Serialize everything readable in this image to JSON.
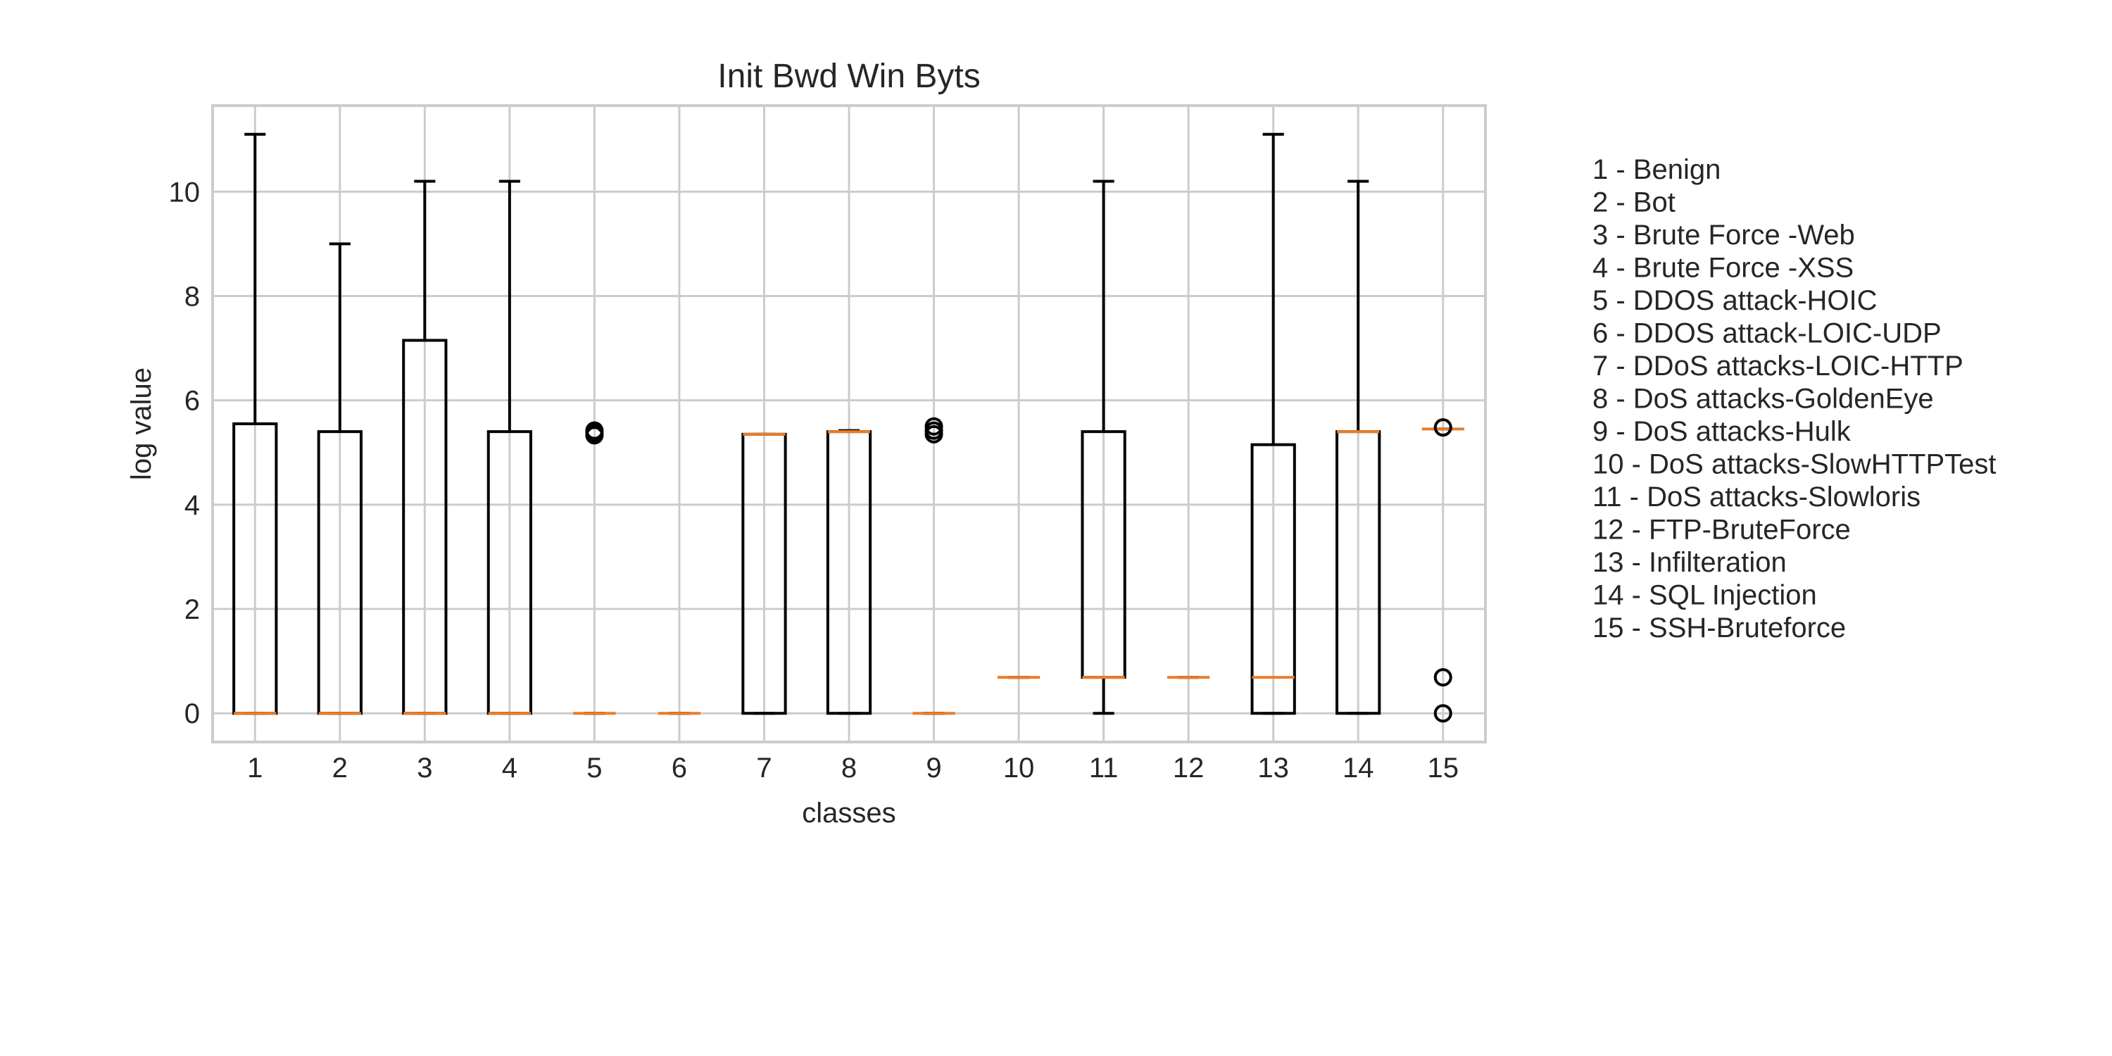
{
  "chart_data": {
    "type": "box",
    "title": "Init Bwd Win Byts",
    "xlabel": "classes",
    "ylabel": "log value",
    "ylim": [
      -0.55,
      11.65
    ],
    "yticks": [
      0,
      2,
      4,
      6,
      8,
      10
    ],
    "grid": true,
    "legend_placement": "right",
    "colors": {
      "box": "#000000",
      "median": "#e87d2a",
      "grid": "#cccccc",
      "frame": "#cccccc"
    },
    "categories": [
      "1",
      "2",
      "3",
      "4",
      "5",
      "6",
      "7",
      "8",
      "9",
      "10",
      "11",
      "12",
      "13",
      "14",
      "15"
    ],
    "boxes": [
      {
        "label": "1",
        "whislo": 0,
        "q1": 0,
        "med": 0,
        "q3": 5.55,
        "whishi": 11.1,
        "fliers": []
      },
      {
        "label": "2",
        "whislo": 0,
        "q1": 0,
        "med": 0,
        "q3": 5.4,
        "whishi": 9.0,
        "fliers": []
      },
      {
        "label": "3",
        "whislo": 0,
        "q1": 0,
        "med": 0,
        "q3": 7.15,
        "whishi": 10.2,
        "fliers": []
      },
      {
        "label": "4",
        "whislo": 0,
        "q1": 0,
        "med": 0,
        "q3": 5.4,
        "whishi": 10.2,
        "fliers": []
      },
      {
        "label": "5",
        "whislo": 0,
        "q1": 0,
        "med": 0,
        "q3": 0,
        "whishi": 0,
        "fliers": [
          5.33,
          5.38,
          5.42
        ]
      },
      {
        "label": "6",
        "whislo": 0,
        "q1": 0,
        "med": 0,
        "q3": 0,
        "whishi": 0,
        "fliers": []
      },
      {
        "label": "7",
        "whislo": 0,
        "q1": 0,
        "med": 5.35,
        "q3": 5.35,
        "whishi": 5.35,
        "fliers": []
      },
      {
        "label": "8",
        "whislo": 0,
        "q1": 0,
        "med": 5.4,
        "q3": 5.4,
        "whishi": 5.42,
        "fliers": []
      },
      {
        "label": "9",
        "whislo": 0,
        "q1": 0,
        "med": 0,
        "q3": 0,
        "whishi": 0,
        "fliers": [
          5.35,
          5.42,
          5.5
        ]
      },
      {
        "label": "10",
        "whislo": 0.69,
        "q1": 0.69,
        "med": 0.69,
        "q3": 0.69,
        "whishi": 0.69,
        "fliers": []
      },
      {
        "label": "11",
        "whislo": 0,
        "q1": 0.69,
        "med": 0.69,
        "q3": 5.4,
        "whishi": 10.2,
        "fliers": []
      },
      {
        "label": "12",
        "whislo": 0.69,
        "q1": 0.69,
        "med": 0.69,
        "q3": 0.69,
        "whishi": 0.69,
        "fliers": []
      },
      {
        "label": "13",
        "whislo": 0,
        "q1": 0,
        "med": 0.69,
        "q3": 5.15,
        "whishi": 11.1,
        "fliers": []
      },
      {
        "label": "14",
        "whislo": 0,
        "q1": 0,
        "med": 5.4,
        "q3": 5.4,
        "whishi": 10.2,
        "fliers": []
      },
      {
        "label": "15",
        "whislo": 5.45,
        "q1": 5.45,
        "med": 5.45,
        "q3": 5.45,
        "whishi": 5.45,
        "fliers": [
          5.48,
          0.69,
          0
        ]
      }
    ],
    "legend": [
      "1 - Benign",
      "2 - Bot",
      "3 - Brute Force -Web",
      "4 - Brute Force -XSS",
      "5 - DDOS attack-HOIC",
      "6 - DDOS attack-LOIC-UDP",
      "7 - DDoS attacks-LOIC-HTTP",
      "8 - DoS attacks-GoldenEye",
      "9 - DoS attacks-Hulk",
      "10 - DoS attacks-SlowHTTPTest",
      "11 - DoS attacks-Slowloris",
      "12 - FTP-BruteForce",
      "13 - Infilteration",
      "14 - SQL Injection",
      "15 - SSH-Bruteforce"
    ]
  }
}
